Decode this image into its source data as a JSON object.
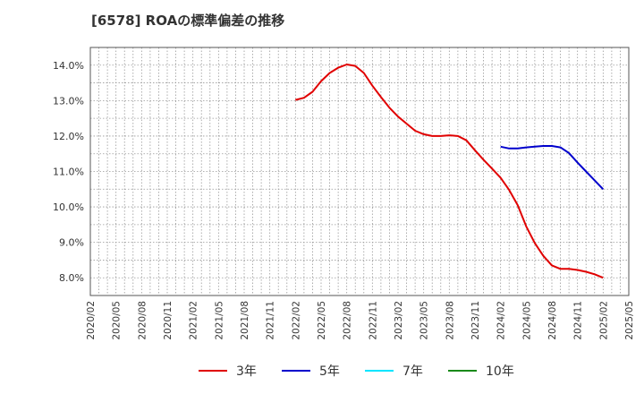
{
  "chart_data": {
    "type": "line",
    "title": "[6578]  ROAの標準偏差の推移",
    "xlabel": "",
    "ylabel": "",
    "ylim": [
      7.5,
      14.5
    ],
    "y_ticks": [
      8.0,
      9.0,
      10.0,
      11.0,
      12.0,
      13.0,
      14.0
    ],
    "y_tick_labels": [
      "8.0%",
      "9.0%",
      "10.0%",
      "11.0%",
      "12.0%",
      "13.0%",
      "14.0%"
    ],
    "x_tick_labels": [
      "2020/02",
      "2020/05",
      "2020/08",
      "2020/11",
      "2021/02",
      "2021/05",
      "2021/08",
      "2021/11",
      "2022/02",
      "2022/05",
      "2022/08",
      "2022/11",
      "2023/02",
      "2023/05",
      "2023/08",
      "2023/11",
      "2024/02",
      "2024/05",
      "2024/08",
      "2024/11",
      "2025/02",
      "2025/05"
    ],
    "grid": true,
    "legend_position": "bottom",
    "series": [
      {
        "name": "3年",
        "color": "#e00000",
        "start_month_index": 24,
        "values": [
          13.02,
          13.08,
          13.25,
          13.55,
          13.78,
          13.93,
          14.02,
          13.98,
          13.78,
          13.42,
          13.1,
          12.8,
          12.55,
          12.35,
          12.15,
          12.05,
          12.0,
          12.0,
          12.02,
          12.0,
          11.88,
          11.6,
          11.33,
          11.08,
          10.82,
          10.48,
          10.05,
          9.45,
          8.98,
          8.62,
          8.35,
          8.25,
          8.25,
          8.22,
          8.17,
          8.1,
          8.0
        ]
      },
      {
        "name": "5年",
        "color": "#0000cc",
        "start_month_index": 48,
        "values": [
          11.7,
          11.65,
          11.65,
          11.68,
          11.7,
          11.72,
          11.72,
          11.68,
          11.52,
          11.25,
          11.0,
          10.75,
          10.5
        ]
      },
      {
        "name": "7年",
        "color": "#00e5ff",
        "start_month_index": 0,
        "values": []
      },
      {
        "name": "10年",
        "color": "#1a8a1a",
        "start_month_index": 0,
        "values": []
      }
    ]
  }
}
